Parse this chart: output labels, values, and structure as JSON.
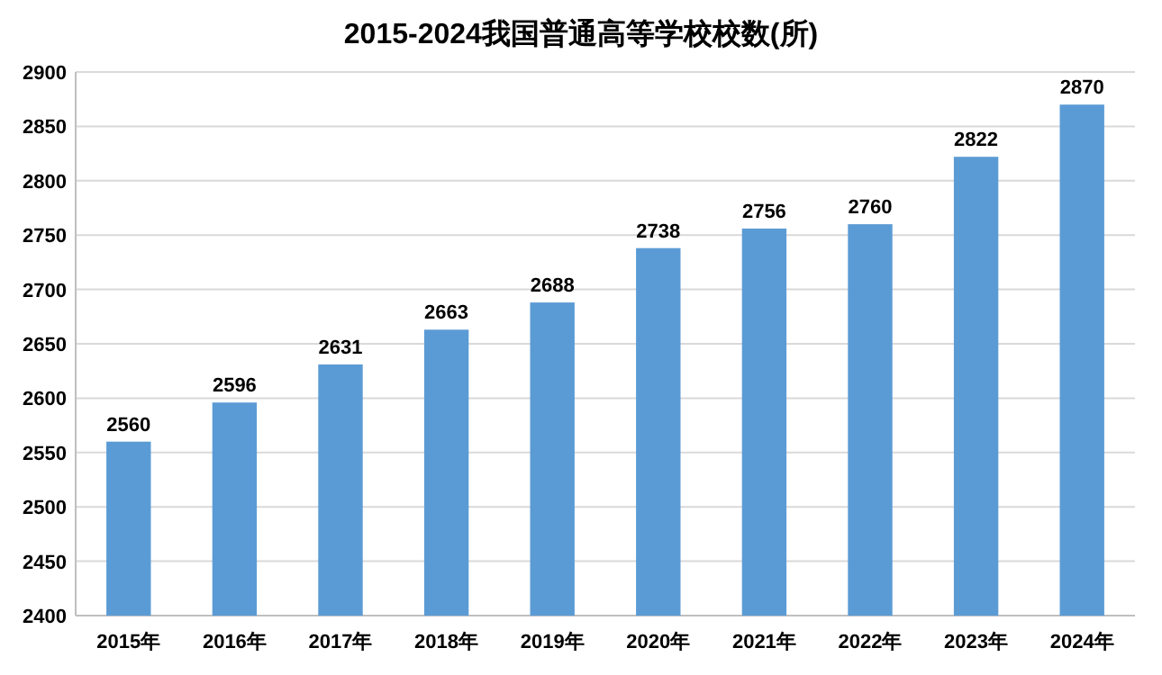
{
  "chart_data": {
    "type": "bar",
    "title": "2015-2024我国普通高等学校校数(所)",
    "categories": [
      "2015年",
      "2016年",
      "2017年",
      "2018年",
      "2019年",
      "2020年",
      "2021年",
      "2022年",
      "2023年",
      "2024年"
    ],
    "values": [
      2560,
      2596,
      2631,
      2663,
      2688,
      2738,
      2756,
      2760,
      2822,
      2870
    ],
    "color": "#5b9bd5",
    "ylim": [
      2400,
      2900
    ],
    "yticks": [
      2400,
      2450,
      2500,
      2550,
      2600,
      2650,
      2700,
      2750,
      2800,
      2850,
      2900
    ],
    "grid": "y",
    "data_labels": true
  }
}
